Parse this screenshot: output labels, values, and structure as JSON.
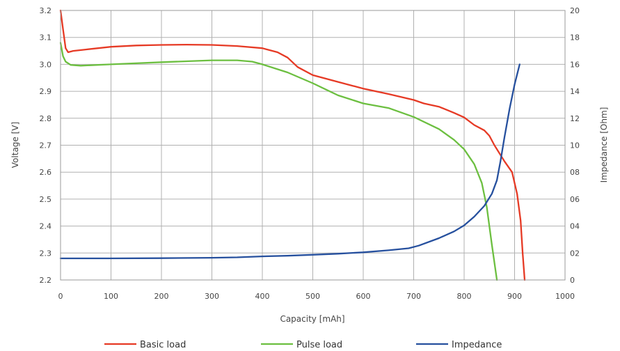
{
  "chart_data": {
    "type": "line",
    "xlabel": "Capacity [mAh]",
    "ylabel": "Voltage [V]",
    "y2label": "Impedance [Ohm]",
    "xlim": [
      0,
      1000
    ],
    "ylim": [
      2.2,
      3.2
    ],
    "y2lim": [
      0,
      20
    ],
    "grid": true,
    "legend_position": "bottom",
    "x_ticks": [
      "0",
      "100",
      "200",
      "300",
      "400",
      "500",
      "600",
      "700",
      "800",
      "900",
      "1000"
    ],
    "y_ticks": [
      "2.2",
      "2.3",
      "2.4",
      "2.5",
      "2.6",
      "2.7",
      "2.8",
      "2.9",
      "3.0",
      "3.1",
      "3.2"
    ],
    "y2_ticks": [
      "0",
      "02",
      "04",
      "06",
      "08",
      "10",
      "12",
      "14",
      "16",
      "18",
      "20"
    ],
    "series": [
      {
        "name": "Basic load",
        "axis": "left",
        "color": "#e63a25",
        "points": [
          [
            0,
            3.2
          ],
          [
            5,
            3.13
          ],
          [
            10,
            3.06
          ],
          [
            15,
            3.045
          ],
          [
            25,
            3.05
          ],
          [
            50,
            3.055
          ],
          [
            100,
            3.065
          ],
          [
            150,
            3.07
          ],
          [
            200,
            3.072
          ],
          [
            250,
            3.073
          ],
          [
            300,
            3.072
          ],
          [
            350,
            3.068
          ],
          [
            400,
            3.06
          ],
          [
            430,
            3.045
          ],
          [
            450,
            3.025
          ],
          [
            470,
            2.99
          ],
          [
            500,
            2.96
          ],
          [
            550,
            2.935
          ],
          [
            600,
            2.91
          ],
          [
            650,
            2.89
          ],
          [
            700,
            2.868
          ],
          [
            720,
            2.855
          ],
          [
            750,
            2.843
          ],
          [
            780,
            2.82
          ],
          [
            800,
            2.803
          ],
          [
            820,
            2.775
          ],
          [
            840,
            2.755
          ],
          [
            850,
            2.735
          ],
          [
            860,
            2.7
          ],
          [
            880,
            2.64
          ],
          [
            895,
            2.6
          ],
          [
            905,
            2.52
          ],
          [
            912,
            2.42
          ],
          [
            916,
            2.3
          ],
          [
            920,
            2.2
          ]
        ]
      },
      {
        "name": "Pulse load",
        "axis": "left",
        "color": "#6cbf40",
        "points": [
          [
            0,
            3.08
          ],
          [
            5,
            3.03
          ],
          [
            10,
            3.01
          ],
          [
            20,
            2.998
          ],
          [
            40,
            2.995
          ],
          [
            100,
            3.0
          ],
          [
            200,
            3.008
          ],
          [
            300,
            3.015
          ],
          [
            350,
            3.015
          ],
          [
            380,
            3.01
          ],
          [
            400,
            3.0
          ],
          [
            450,
            2.97
          ],
          [
            500,
            2.93
          ],
          [
            550,
            2.885
          ],
          [
            600,
            2.855
          ],
          [
            650,
            2.838
          ],
          [
            700,
            2.805
          ],
          [
            750,
            2.76
          ],
          [
            780,
            2.72
          ],
          [
            800,
            2.685
          ],
          [
            820,
            2.63
          ],
          [
            835,
            2.56
          ],
          [
            845,
            2.47
          ],
          [
            855,
            2.33
          ],
          [
            865,
            2.2
          ]
        ]
      },
      {
        "name": "Impedance",
        "axis": "right",
        "color": "#26509e",
        "points": [
          [
            0,
            1.6
          ],
          [
            100,
            1.6
          ],
          [
            200,
            1.62
          ],
          [
            300,
            1.65
          ],
          [
            350,
            1.68
          ],
          [
            400,
            1.75
          ],
          [
            450,
            1.8
          ],
          [
            500,
            1.87
          ],
          [
            550,
            1.95
          ],
          [
            600,
            2.05
          ],
          [
            650,
            2.2
          ],
          [
            690,
            2.35
          ],
          [
            710,
            2.55
          ],
          [
            750,
            3.1
          ],
          [
            780,
            3.6
          ],
          [
            800,
            4.05
          ],
          [
            820,
            4.7
          ],
          [
            840,
            5.5
          ],
          [
            855,
            6.4
          ],
          [
            865,
            7.4
          ],
          [
            872,
            8.8
          ],
          [
            880,
            10.6
          ],
          [
            890,
            12.7
          ],
          [
            900,
            14.5
          ],
          [
            910,
            16.0
          ]
        ]
      }
    ]
  }
}
